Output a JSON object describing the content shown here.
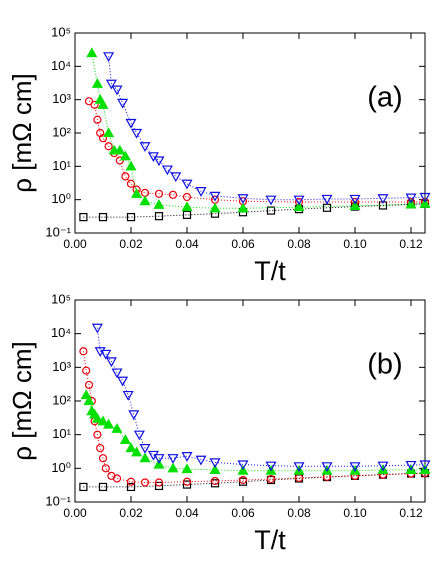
{
  "chart_data": [
    {
      "type": "scatter",
      "annotation": "(a)",
      "xlabel": "T/t",
      "ylabel": "ρ [mΩ cm]",
      "y_scale": "log",
      "xlim": [
        0,
        0.125
      ],
      "xticks": [
        {
          "value": 0,
          "label": "0.00"
        },
        0.02,
        0.04,
        0.06,
        0.08,
        {
          "value": 0.1,
          "label": "0.10"
        },
        0.12
      ],
      "ylim": [
        0.1,
        100000
      ],
      "yticks": [
        {
          "value": 0.1,
          "label": "10⁻¹"
        },
        {
          "value": 1,
          "label": "10⁰"
        },
        {
          "value": 10,
          "label": "10¹"
        },
        {
          "value": 100,
          "label": "10²"
        },
        {
          "value": 1000,
          "label": "10³"
        },
        {
          "value": 10000,
          "label": "10⁴"
        },
        {
          "value": 100000,
          "label": "10⁵"
        }
      ],
      "series": [
        {
          "color": "#000000",
          "marker": "square",
          "filled": false,
          "x": [
            0.003,
            0.01,
            0.02,
            0.03,
            0.04,
            0.05,
            0.06,
            0.07,
            0.08,
            0.09,
            0.1,
            0.11,
            0.12,
            0.125
          ],
          "values": [
            0.3,
            0.3,
            0.3,
            0.32,
            0.35,
            0.38,
            0.42,
            0.47,
            0.52,
            0.57,
            0.62,
            0.67,
            0.72,
            0.75
          ]
        },
        {
          "color": "#e8000b",
          "marker": "circle",
          "filled": false,
          "x": [
            0.005,
            0.007,
            0.008,
            0.009,
            0.01,
            0.012,
            0.014,
            0.016,
            0.018,
            0.02,
            0.022,
            0.025,
            0.03,
            0.035,
            0.04,
            0.05,
            0.06,
            0.08,
            0.1,
            0.12,
            0.125
          ],
          "values": [
            900,
            700,
            250,
            100,
            70,
            40,
            25,
            15,
            5,
            3,
            2,
            1.6,
            1.5,
            1.4,
            1.2,
            1.0,
            0.9,
            0.85,
            0.85,
            0.85,
            0.85
          ]
        },
        {
          "color": "#00e000",
          "marker": "triangle-up",
          "filled": true,
          "x": [
            0.006,
            0.008,
            0.009,
            0.01,
            0.012,
            0.014,
            0.016,
            0.018,
            0.02,
            0.022,
            0.025,
            0.03,
            0.04,
            0.05,
            0.06,
            0.08,
            0.1,
            0.12,
            0.125
          ],
          "values": [
            25000,
            3000,
            1000,
            700,
            100,
            30,
            30,
            20,
            10,
            1.5,
            0.9,
            0.7,
            0.6,
            0.55,
            0.55,
            0.6,
            0.65,
            0.72,
            0.75
          ]
        },
        {
          "color": "#1010e0",
          "marker": "triangle-down",
          "filled": false,
          "x": [
            0.012,
            0.013,
            0.015,
            0.017,
            0.02,
            0.022,
            0.025,
            0.028,
            0.03,
            0.033,
            0.036,
            0.04,
            0.045,
            0.05,
            0.06,
            0.07,
            0.08,
            0.09,
            0.1,
            0.11,
            0.12,
            0.125
          ],
          "values": [
            20000,
            3000,
            2000,
            800,
            200,
            100,
            40,
            20,
            15,
            8,
            5,
            3,
            1.8,
            1.3,
            1.1,
            1.0,
            1.0,
            1.05,
            1.05,
            1.1,
            1.15,
            1.2
          ]
        }
      ]
    },
    {
      "type": "scatter",
      "annotation": "(b)",
      "xlabel": "T/t",
      "ylabel": "ρ [mΩ cm]",
      "y_scale": "log",
      "xlim": [
        0,
        0.125
      ],
      "xticks": [
        {
          "value": 0,
          "label": "0.00"
        },
        0.02,
        0.04,
        0.06,
        0.08,
        {
          "value": 0.1,
          "label": "0.10"
        },
        0.12
      ],
      "ylim": [
        0.1,
        100000
      ],
      "yticks": [
        {
          "value": 0.1,
          "label": "10⁻¹"
        },
        {
          "value": 1,
          "label": "10⁰"
        },
        {
          "value": 10,
          "label": "10¹"
        },
        {
          "value": 100,
          "label": "10²"
        },
        {
          "value": 1000,
          "label": "10³"
        },
        {
          "value": 10000,
          "label": "10⁴"
        },
        {
          "value": 100000,
          "label": "10⁵"
        }
      ],
      "series": [
        {
          "color": "#000000",
          "marker": "square",
          "filled": false,
          "x": [
            0.003,
            0.01,
            0.02,
            0.03,
            0.04,
            0.05,
            0.06,
            0.07,
            0.08,
            0.09,
            0.1,
            0.11,
            0.12,
            0.125
          ],
          "values": [
            0.28,
            0.28,
            0.28,
            0.3,
            0.33,
            0.36,
            0.4,
            0.45,
            0.5,
            0.55,
            0.6,
            0.65,
            0.7,
            0.72
          ]
        },
        {
          "color": "#e8000b",
          "marker": "circle",
          "filled": false,
          "x": [
            0.003,
            0.004,
            0.005,
            0.006,
            0.007,
            0.008,
            0.009,
            0.01,
            0.011,
            0.013,
            0.015,
            0.02,
            0.025,
            0.03,
            0.04,
            0.05,
            0.06,
            0.07,
            0.08,
            0.09,
            0.1,
            0.11,
            0.12,
            0.125
          ],
          "values": [
            3000,
            800,
            300,
            100,
            25,
            10,
            4,
            2,
            1,
            0.6,
            0.5,
            0.4,
            0.38,
            0.38,
            0.4,
            0.42,
            0.45,
            0.48,
            0.52,
            0.56,
            0.6,
            0.65,
            0.7,
            0.72
          ]
        },
        {
          "color": "#00e000",
          "marker": "triangle-up",
          "filled": true,
          "x": [
            0.004,
            0.005,
            0.006,
            0.007,
            0.008,
            0.01,
            0.012,
            0.015,
            0.018,
            0.02,
            0.022,
            0.025,
            0.03,
            0.035,
            0.04,
            0.05,
            0.06,
            0.07,
            0.08,
            0.09,
            0.1,
            0.11,
            0.12,
            0.125
          ],
          "values": [
            150,
            100,
            50,
            40,
            30,
            25,
            20,
            15,
            7,
            4,
            3,
            2,
            1.3,
            1.0,
            0.95,
            0.9,
            0.85,
            0.85,
            0.85,
            0.85,
            0.85,
            0.9,
            0.9,
            0.9
          ]
        },
        {
          "color": "#1010e0",
          "marker": "triangle-down",
          "filled": false,
          "x": [
            0.008,
            0.009,
            0.011,
            0.013,
            0.015,
            0.017,
            0.019,
            0.021,
            0.023,
            0.025,
            0.028,
            0.03,
            0.035,
            0.04,
            0.045,
            0.05,
            0.06,
            0.07,
            0.08,
            0.09,
            0.1,
            0.11,
            0.12,
            0.125
          ],
          "values": [
            15000,
            3000,
            2500,
            1500,
            700,
            400,
            150,
            40,
            10,
            4,
            2.5,
            2,
            2,
            2.3,
            1.8,
            1.5,
            1.3,
            1.2,
            1.15,
            1.15,
            1.15,
            1.2,
            1.25,
            1.3
          ]
        }
      ]
    }
  ]
}
